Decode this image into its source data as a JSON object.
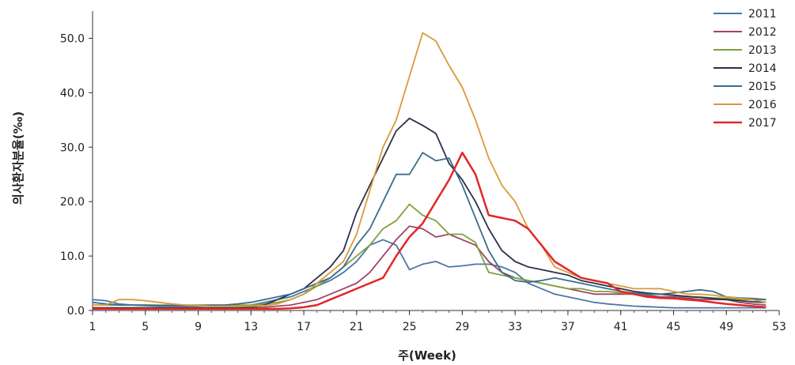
{
  "chart_data": {
    "type": "line",
    "xlabel": "주(Week)",
    "ylabel": "의사환자분율(‰)",
    "xlim": [
      1,
      53
    ],
    "ylim": [
      0,
      55
    ],
    "x_ticks": [
      1,
      5,
      9,
      13,
      17,
      21,
      25,
      29,
      33,
      37,
      41,
      45,
      49,
      53
    ],
    "y_ticks": [
      "0.0",
      "10.0",
      "20.0",
      "30.0",
      "40.0",
      "50.0"
    ],
    "grid": false,
    "legend_position": "top-right",
    "x": [
      1,
      2,
      3,
      4,
      5,
      6,
      7,
      8,
      9,
      10,
      11,
      12,
      13,
      14,
      15,
      16,
      17,
      18,
      19,
      20,
      21,
      22,
      23,
      24,
      25,
      26,
      27,
      28,
      29,
      30,
      31,
      32,
      33,
      34,
      35,
      36,
      37,
      38,
      39,
      40,
      41,
      42,
      43,
      44,
      45,
      46,
      47,
      48,
      49,
      50,
      51,
      52
    ],
    "series": [
      {
        "name": "2011",
        "color": "#4a76a8",
        "values": [
          2,
          1.8,
          1.2,
          1,
          0.9,
          0.8,
          0.8,
          0.8,
          0.8,
          0.9,
          0.9,
          0.9,
          1,
          1.5,
          2,
          2.5,
          3.5,
          4.5,
          5.5,
          7,
          9,
          12,
          13,
          12,
          7.5,
          8.5,
          9,
          8,
          8.2,
          8.5,
          8.5,
          8,
          7,
          5,
          4,
          3,
          2.5,
          2,
          1.5,
          1.2,
          1,
          0.8,
          0.7,
          0.6,
          0.5,
          0.5,
          0.5,
          0.5,
          0.5,
          0.5,
          0.5,
          0.5
        ]
      },
      {
        "name": "2012",
        "color": "#a0436a",
        "values": [
          0.5,
          0.5,
          0.5,
          0.5,
          0.5,
          0.5,
          0.5,
          0.5,
          0.5,
          0.5,
          0.5,
          0.5,
          0.5,
          0.6,
          0.8,
          1,
          1.5,
          2,
          3,
          4,
          5,
          7,
          10,
          13,
          15.5,
          15,
          13.5,
          14,
          13,
          12,
          9,
          7,
          6,
          5.5,
          5,
          4.5,
          4,
          3.5,
          3,
          3,
          3,
          3,
          2.8,
          2.5,
          2.5,
          2.3,
          2,
          2,
          2,
          1.5,
          1.2,
          1
        ]
      },
      {
        "name": "2013",
        "color": "#7fa03c",
        "values": [
          1,
          1,
          1,
          1,
          1,
          1,
          1,
          1,
          1,
          1,
          1,
          1,
          1,
          1.2,
          1.5,
          2,
          3,
          4.5,
          6,
          8,
          10,
          12,
          15,
          16.5,
          19.5,
          17.5,
          16.5,
          14,
          14,
          12.5,
          7,
          6.5,
          6,
          5.5,
          5,
          4.5,
          4,
          4,
          3.5,
          3.5,
          3.2,
          3,
          3,
          3,
          2.8,
          2.5,
          2.5,
          2.3,
          2.2,
          2,
          2,
          2
        ]
      },
      {
        "name": "2014",
        "color": "#2b3048",
        "values": [
          0.5,
          0.5,
          0.5,
          0.5,
          0.5,
          0.5,
          0.5,
          0.5,
          0.5,
          0.5,
          0.5,
          0.5,
          0.6,
          1,
          2,
          3,
          4,
          6,
          8,
          11,
          18,
          23,
          28,
          33,
          35.3,
          34,
          32.5,
          27,
          24,
          20,
          15,
          11,
          9,
          8,
          7.5,
          7,
          6.5,
          5.5,
          5,
          4.5,
          4,
          3.5,
          3.2,
          3,
          2.8,
          2.6,
          2.4,
          2.2,
          2,
          1.8,
          1.6,
          1.5
        ]
      },
      {
        "name": "2015",
        "color": "#3a6c8c",
        "values": [
          1.5,
          1.2,
          1,
          1,
          1,
          0.9,
          0.9,
          0.9,
          0.9,
          1,
          1,
          1.2,
          1.5,
          2,
          2.5,
          3,
          4,
          5,
          6,
          8,
          12,
          15,
          20,
          25,
          25,
          29,
          27.5,
          28,
          23,
          17,
          11,
          7,
          5.5,
          5.2,
          5.5,
          6,
          5.5,
          5,
          4.5,
          4,
          3.5,
          3.2,
          3,
          3,
          3.2,
          3.5,
          3.8,
          3.5,
          2.5,
          2.3,
          2.2,
          2
        ]
      },
      {
        "name": "2016",
        "color": "#d99a3a",
        "values": [
          1,
          1,
          2,
          2,
          1.8,
          1.5,
          1.2,
          1,
          0.9,
          0.8,
          0.8,
          0.8,
          0.8,
          0.9,
          1.2,
          2,
          3,
          5,
          7,
          9,
          14,
          22,
          30,
          35,
          43,
          51,
          49.5,
          45,
          41,
          35,
          28,
          23,
          20,
          15,
          12,
          8,
          7,
          6,
          5.5,
          5,
          4.5,
          4,
          4,
          4,
          3.5,
          3,
          3,
          2.8,
          2.5,
          2.2,
          2,
          1.5
        ]
      },
      {
        "name": "2017",
        "color": "#e02828",
        "values": [
          0.3,
          0.3,
          0.3,
          0.3,
          0.3,
          0.3,
          0.3,
          0.3,
          0.3,
          0.3,
          0.3,
          0.3,
          0.3,
          0.3,
          0.3,
          0.4,
          0.6,
          1,
          2,
          3,
          4,
          5,
          6,
          10,
          13.5,
          16,
          20,
          24,
          29,
          25,
          17.5,
          17,
          16.5,
          15,
          12,
          9,
          7.5,
          6,
          5.5,
          5,
          3.5,
          3,
          2.5,
          2.3,
          2.2,
          2,
          1.8,
          1.5,
          1.2,
          1,
          0.8,
          0.6
        ]
      }
    ]
  }
}
